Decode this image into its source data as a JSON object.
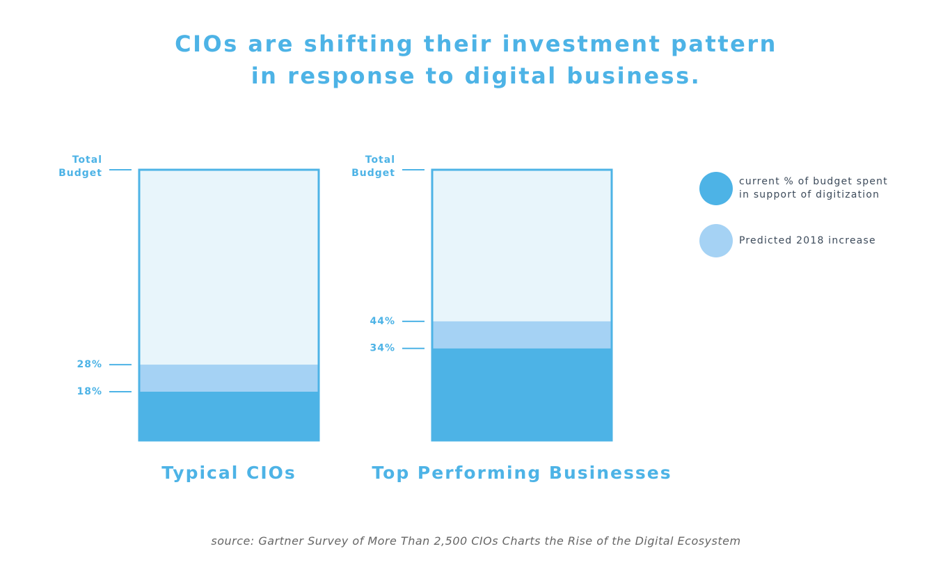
{
  "title": {
    "line1": "CIOs are shifting their investment pattern",
    "line2": "in response to digital business."
  },
  "colors": {
    "accent": "#4db3e6",
    "current": "#4db3e6",
    "predicted": "#a5d2f4",
    "container_fill": "#e8f5fb",
    "container_border": "#4db3e6",
    "text_dark": "#3c4a5a",
    "source_text": "#666666"
  },
  "legend": {
    "items": [
      {
        "label": "current % of budget spent\nin support of digitization",
        "color": "#4db3e6"
      },
      {
        "label": "Predicted 2018 increase",
        "color": "#a5d2f4"
      }
    ]
  },
  "chart_data": {
    "type": "bar",
    "stacked": true,
    "categories": [
      "Typical CIOs",
      "Top Performing Businesses"
    ],
    "series": [
      {
        "name": "current % of budget spent in support of digitization",
        "values": [
          18,
          34
        ]
      },
      {
        "name": "Predicted 2018 increase",
        "values": [
          10,
          10
        ]
      }
    ],
    "tick_labels": [
      {
        "top_label": "Total Budget",
        "current_label": "18%",
        "predicted_label": "28%"
      },
      {
        "top_label": "Total Budget",
        "current_label": "34%",
        "predicted_label": "44%"
      }
    ],
    "ylim": [
      0,
      100
    ],
    "title": "CIOs are shifting their investment pattern in response to digital business.",
    "xlabel": "",
    "ylabel": "",
    "grid": false,
    "legend_position": "right"
  },
  "source": "source: Gartner Survey of More Than 2,500 CIOs Charts the Rise of the Digital Ecosystem"
}
